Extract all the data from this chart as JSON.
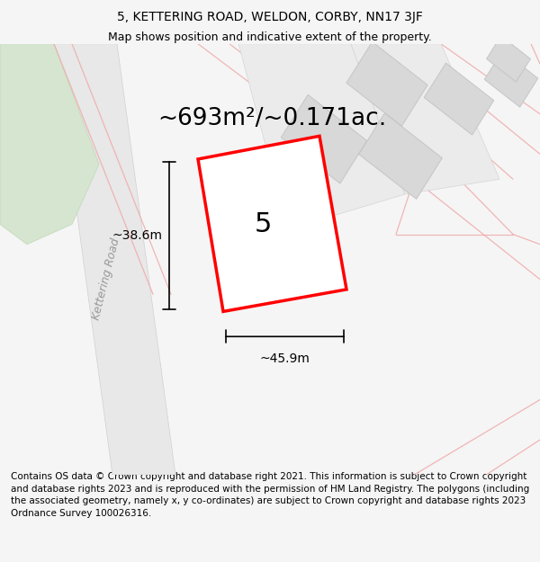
{
  "title": "5, KETTERING ROAD, WELDON, CORBY, NN17 3JF",
  "subtitle": "Map shows position and indicative extent of the property.",
  "area_label": "~693m²/~0.171ac.",
  "plot_number": "5",
  "dim_width": "~45.9m",
  "dim_height": "~38.6m",
  "road_label": "Kettering Road",
  "footer": "Contains OS data © Crown copyright and database right 2021. This information is subject to Crown copyright and database rights 2023 and is reproduced with the permission of HM Land Registry. The polygons (including the associated geometry, namely x, y co-ordinates) are subject to Crown copyright and database rights 2023 Ordnance Survey 100026316.",
  "bg_color": "#f5f5f5",
  "map_bg": "#ffffff",
  "plot_fill": "#ffffff",
  "plot_edge": "#ff0000",
  "building_fill": "#d8d8d8",
  "building_edge": "#c8c8c8",
  "green_fill": "#d5e5d0",
  "pink_line": "#f0aaaa",
  "road_fill": "#e0e0e0",
  "title_fontsize": 10,
  "subtitle_fontsize": 9,
  "area_fontsize": 19,
  "plot_num_fontsize": 22,
  "dim_fontsize": 10,
  "footer_fontsize": 7.5,
  "road_label_fontsize": 9
}
